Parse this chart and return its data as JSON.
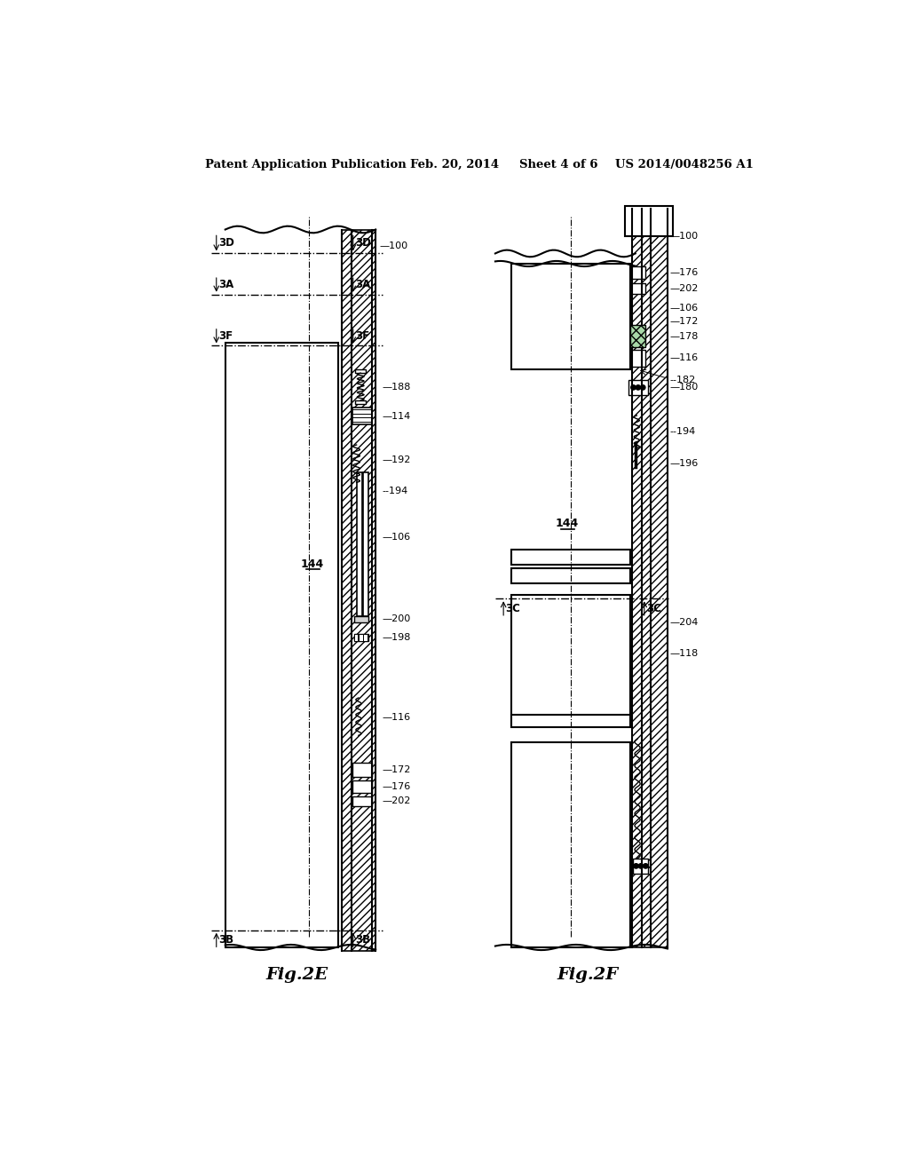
{
  "bg_color": "#ffffff",
  "header_text": "Patent Application Publication",
  "header_date": "Feb. 20, 2014",
  "header_sheet": "Sheet 4 of 6",
  "header_patent": "US 2014/0048256 A1",
  "fig2e_label": "Fig.2E",
  "fig2f_label": "Fig.2F"
}
